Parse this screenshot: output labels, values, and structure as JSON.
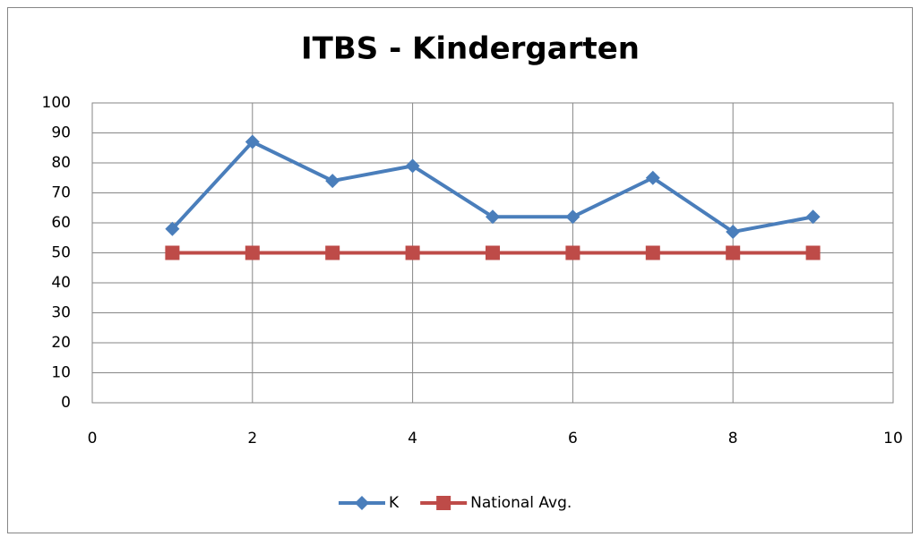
{
  "chart_data": {
    "type": "line",
    "title": "ITBS - Kindergarten",
    "x": [
      1,
      2,
      3,
      4,
      5,
      6,
      7,
      8,
      9
    ],
    "series": [
      {
        "name": "K",
        "color": "#4a7ebb",
        "marker": "diamond",
        "values": [
          58,
          87,
          74,
          79,
          62,
          62,
          75,
          57,
          62
        ]
      },
      {
        "name": "National Avg.",
        "color": "#be4b48",
        "marker": "square",
        "values": [
          50,
          50,
          50,
          50,
          50,
          50,
          50,
          50,
          50
        ]
      }
    ],
    "xlim": [
      0,
      10
    ],
    "xticks": [
      0,
      2,
      4,
      6,
      8,
      10
    ],
    "ylim": [
      0,
      100
    ],
    "yticks": [
      0,
      10,
      20,
      30,
      40,
      50,
      60,
      70,
      80,
      90,
      100
    ],
    "grid": true,
    "legend": "bottom"
  }
}
